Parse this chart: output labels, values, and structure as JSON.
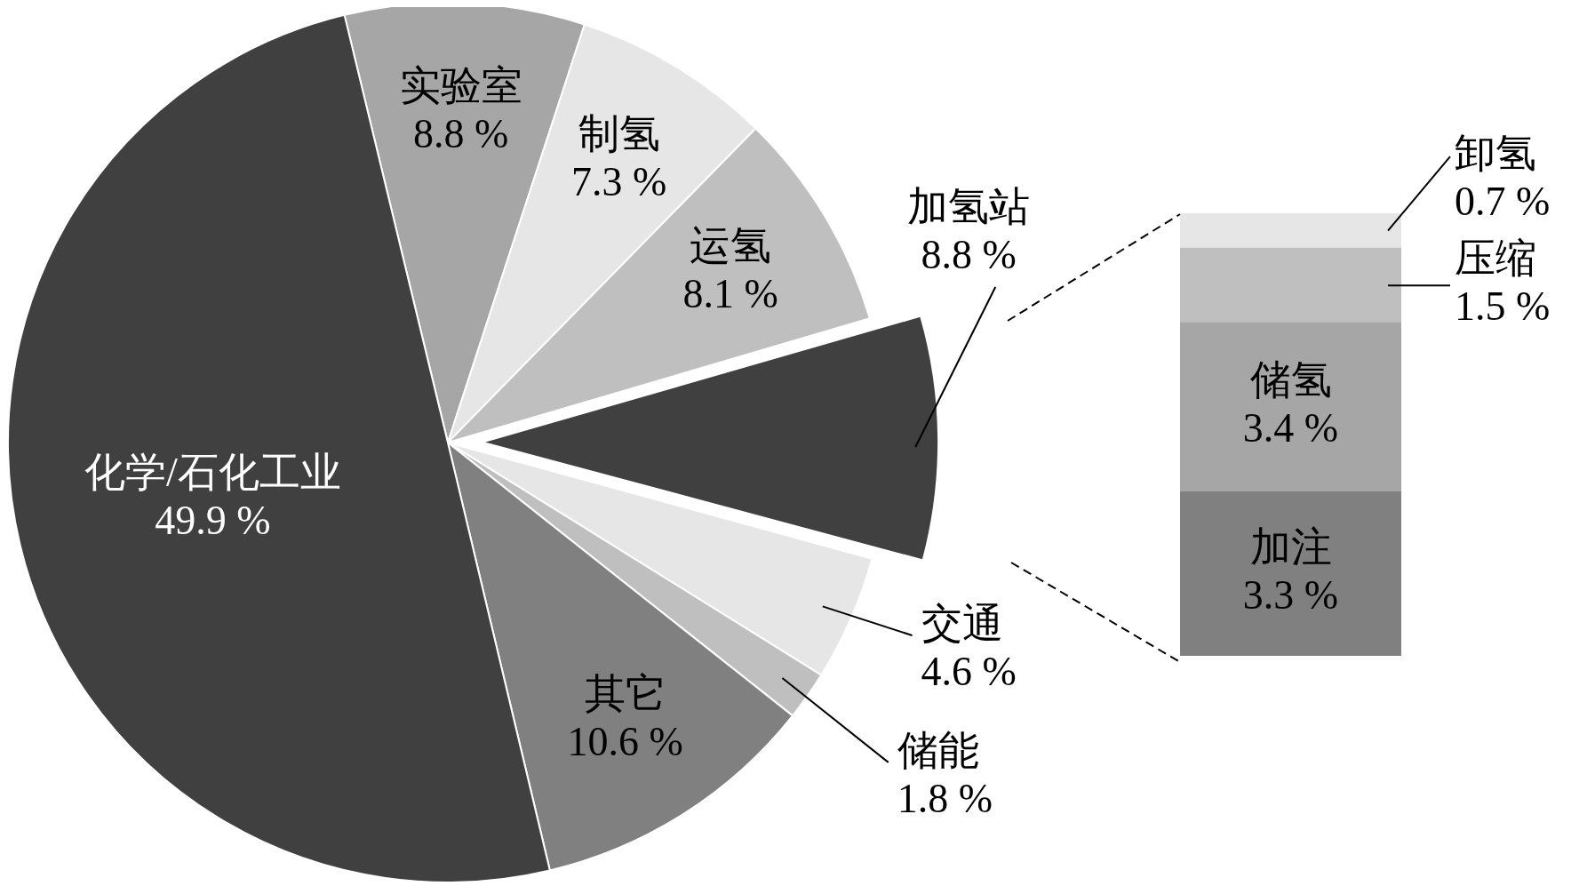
{
  "chart_data": [
    {
      "type": "pie",
      "categories": [
        "实验室",
        "制氢",
        "运氢",
        "加氢站",
        "交通",
        "储能",
        "其它",
        "化学/石化工业"
      ],
      "values": [
        8.8,
        7.3,
        8.1,
        8.8,
        4.6,
        1.8,
        10.6,
        49.9
      ],
      "value_labels": [
        "8.8 %",
        "7.3 %",
        "8.1 %",
        "8.8 %",
        "4.6 %",
        "1.8 %",
        "10.6 %",
        "49.9 %"
      ],
      "colors": [
        "#a6a6a6",
        "#e6e6e6",
        "#bfbfbf",
        "#404040",
        "#e6e6e6",
        "#bfbfbf",
        "#808080",
        "#404040"
      ],
      "legend": false
    },
    {
      "type": "bar",
      "stacked": true,
      "categories": [
        null
      ],
      "legend": false,
      "series": [
        {
          "name": "加注",
          "color": "#808080",
          "values": [
            3.3
          ],
          "value_labels": [
            "3.3 %"
          ]
        },
        {
          "name": "储氢",
          "color": "#a6a6a6",
          "values": [
            3.4
          ],
          "value_labels": [
            "3.4 %"
          ]
        },
        {
          "name": "压缩",
          "color": "#bfbfbf",
          "values": [
            1.5
          ],
          "value_labels": [
            "1.5 %"
          ]
        },
        {
          "name": "卸氢",
          "color": "#e6e6e6",
          "values": [
            0.7
          ],
          "value_labels": [
            "0.7 %"
          ]
        }
      ]
    }
  ]
}
